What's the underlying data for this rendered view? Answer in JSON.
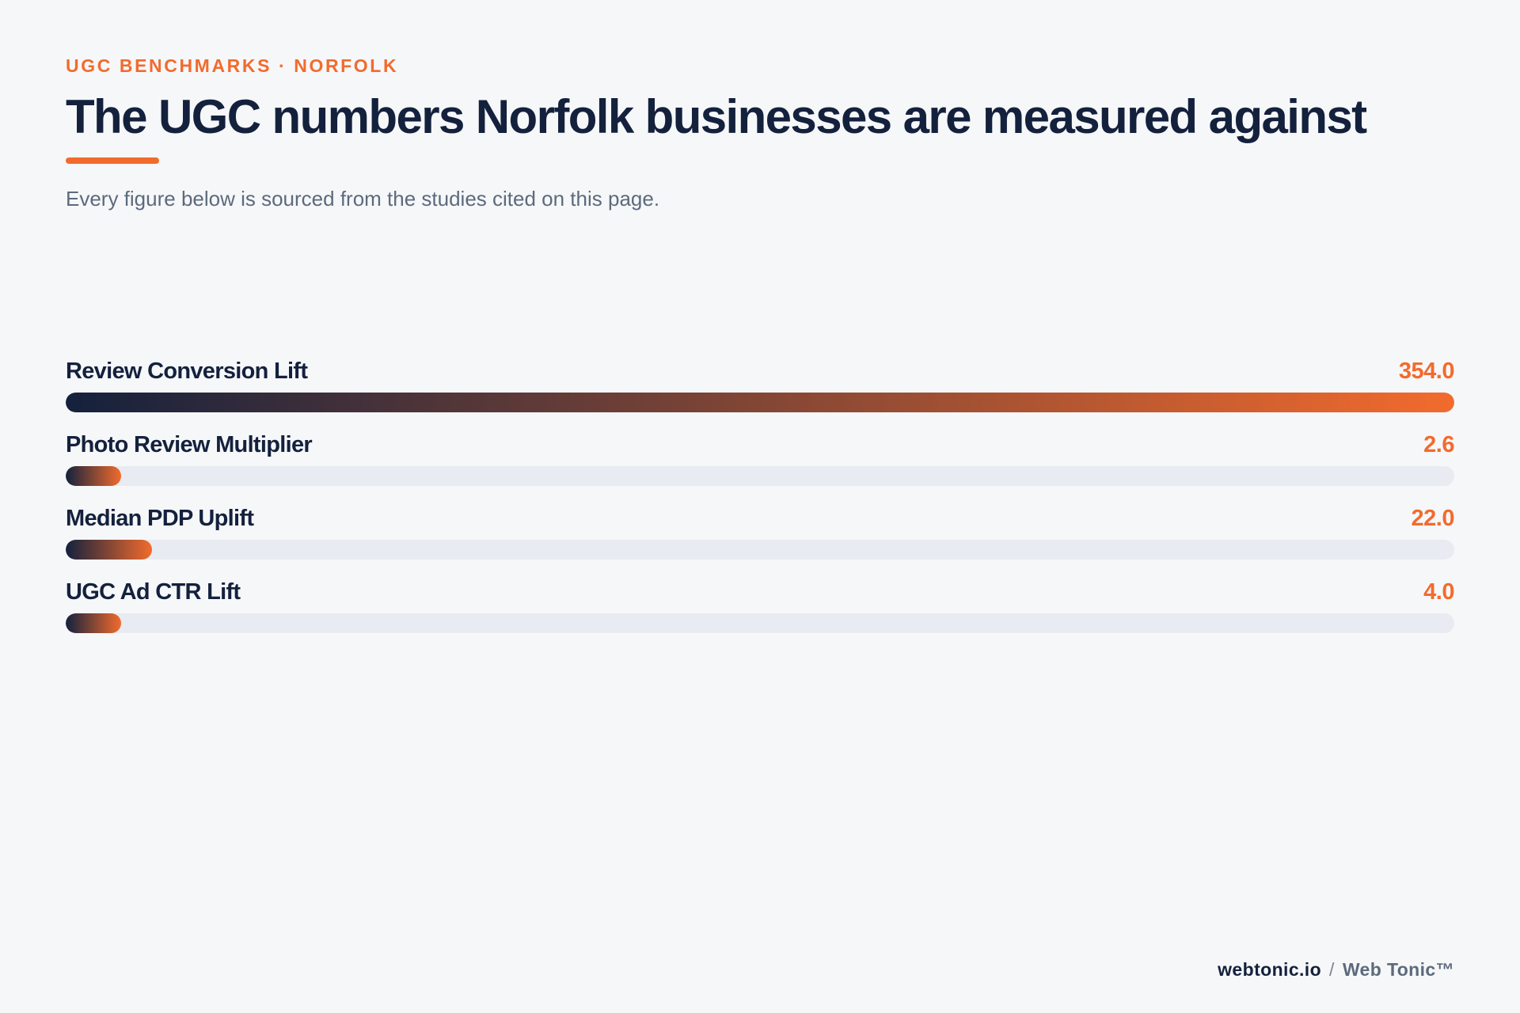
{
  "header": {
    "eyebrow": "UGC BENCHMARKS · NORFOLK",
    "title": "The UGC numbers Norfolk businesses are measured against",
    "subtitle": "Every figure below is sourced from the studies cited on this page."
  },
  "footer": {
    "domain": "webtonic.io",
    "separator": "/",
    "brand": "Web Tonic™"
  },
  "colors": {
    "accent": "#f26b2d",
    "navy": "#14213d",
    "track": "#e8ebf1",
    "background": "#f6f7f9"
  },
  "chart_data": {
    "type": "bar",
    "orientation": "horizontal",
    "categories": [
      "Review Conversion Lift",
      "Photo Review Multiplier",
      "Median PDP Uplift",
      "UGC Ad CTR Lift"
    ],
    "values": [
      354.0,
      2.6,
      22.0,
      4.0
    ],
    "value_labels": [
      "354.0",
      "2.6",
      "22.0",
      "4.0"
    ],
    "xlim": [
      0,
      354.0
    ],
    "grid": false,
    "legend": "none"
  }
}
